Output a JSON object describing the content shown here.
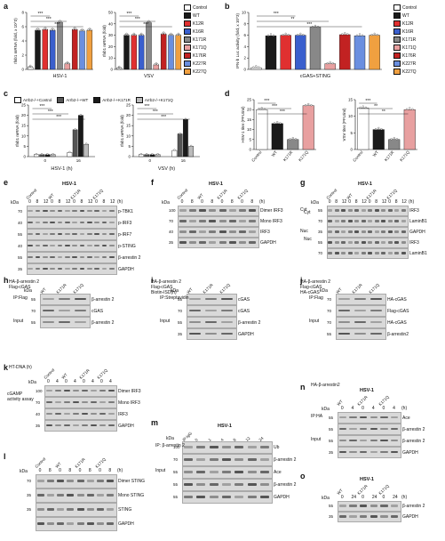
{
  "panel_letters": [
    "a",
    "b",
    "c",
    "d",
    "e",
    "f",
    "g",
    "h",
    "i",
    "j",
    "k",
    "l",
    "m",
    "n",
    "o"
  ],
  "legend_ab": [
    "Control",
    "WT",
    "K12R",
    "K16R",
    "K171R",
    "K171Q",
    "K176R",
    "K227R",
    "K227Q"
  ],
  "legend_c": [
    "Arrb2-/-+Control",
    "Arrb2-/-+WT",
    "Arrb2-/-+K171R",
    "Arrb2-/-+K171Q"
  ],
  "colors": {
    "Control": "#ffffff",
    "WT": "#1a1a1a",
    "K12R": "#e03030",
    "K16R": "#3a5fcd",
    "K171R": "#888888",
    "K171Q": "#e8a0a0",
    "K176R": "#c22222",
    "K227R": "#6a8fe0",
    "K227Q": "#f0a040"
  },
  "chart_data": [
    {
      "panel": "a",
      "type": "bar",
      "title": "HSV-1",
      "ylabel": "Ifnb1 mRNA (fold, x 10^3)",
      "ylim": [
        0,
        8
      ],
      "yticks": [
        "0",
        "2",
        "4",
        "6",
        "8"
      ],
      "categories": [
        "Control",
        "WT",
        "K12R",
        "K16R",
        "K171R",
        "K171Q",
        "K176R",
        "K227R",
        "K227Q"
      ],
      "values": [
        0.3,
        5.5,
        5.6,
        5.5,
        6.6,
        0.8,
        5.6,
        5.4,
        5.5
      ],
      "sig": [
        "***",
        "***",
        "***"
      ]
    },
    {
      "panel": "a",
      "type": "bar",
      "title": "VSV",
      "ylabel": "Ifnb1 mRNA (fold)",
      "ylim": [
        0,
        50
      ],
      "yticks": [
        "0",
        "10",
        "20",
        "30",
        "40",
        "50"
      ],
      "categories": [
        "Control",
        "WT",
        "K12R",
        "K16R",
        "K171R",
        "K171Q",
        "K176R",
        "K227R",
        "K227Q"
      ],
      "values": [
        1,
        30,
        30,
        30,
        41,
        4,
        31,
        30,
        30
      ],
      "sig": [
        "***",
        "***",
        "***"
      ]
    },
    {
      "panel": "b",
      "type": "bar",
      "title": "cGAS+STING",
      "ylabel": "IFN-b Luc activity (fold, x 10^3)",
      "ylim": [
        0,
        10
      ],
      "yticks": [
        "0",
        "2",
        "4",
        "6",
        "8",
        "10"
      ],
      "categories": [
        "Control",
        "WT",
        "K12R",
        "K16R",
        "K171R",
        "K171Q",
        "K176R",
        "K227R",
        "K227Q"
      ],
      "values": [
        0.3,
        5.9,
        6.0,
        6.0,
        7.4,
        1.0,
        6.1,
        5.9,
        6.0
      ],
      "sig": [
        "***",
        "**",
        "***"
      ]
    },
    {
      "panel": "c",
      "type": "bar",
      "title": "HSV-1 (h)",
      "ylabel": "Ifnb1 mRNA (fold)",
      "ylim": [
        0,
        25
      ],
      "yticks": [
        "0",
        "5",
        "10",
        "15",
        "20",
        "25"
      ],
      "categories": [
        "0",
        "16"
      ],
      "series": [
        {
          "name": "Arrb2-/-+Control",
          "values": [
            1,
            2
          ]
        },
        {
          "name": "Arrb2-/-+WT",
          "values": [
            1,
            13
          ]
        },
        {
          "name": "Arrb2-/-+K171R",
          "values": [
            1,
            20
          ]
        },
        {
          "name": "Arrb2-/-+K171Q",
          "values": [
            1,
            6
          ]
        }
      ],
      "sig": [
        "***",
        "***",
        "***"
      ]
    },
    {
      "panel": "c",
      "type": "bar",
      "title": "VSV (h)",
      "ylabel": "Ifnb1 mRNA (fold)",
      "ylim": [
        0,
        25
      ],
      "yticks": [
        "0",
        "5",
        "10",
        "15",
        "20",
        "25"
      ],
      "categories": [
        "0",
        "16"
      ],
      "series": [
        {
          "name": "Arrb2-/-+Control",
          "values": [
            1,
            3
          ]
        },
        {
          "name": "Arrb2-/-+WT",
          "values": [
            1,
            11
          ]
        },
        {
          "name": "Arrb2-/-+K171R",
          "values": [
            1,
            18
          ]
        },
        {
          "name": "Arrb2-/-+K171Q",
          "values": [
            1,
            5
          ]
        }
      ],
      "sig": [
        "***",
        "***",
        "***"
      ]
    },
    {
      "panel": "d",
      "type": "bar",
      "ylabel": "HSV-1 titer (PFU/ml)",
      "ylim": [
        0,
        25
      ],
      "yticks": [
        "0",
        "5",
        "10",
        "15",
        "20",
        "25"
      ],
      "categories": [
        "Control",
        "WT",
        "K171R",
        "K171Q"
      ],
      "values": [
        20,
        13,
        5,
        22
      ],
      "sig": [
        "***",
        "***",
        "***"
      ]
    },
    {
      "panel": "d",
      "type": "bar",
      "ylabel": "VSV titer (PFU/ml)",
      "ylim": [
        0,
        15
      ],
      "yticks": [
        "0",
        "5",
        "10",
        "15"
      ],
      "categories": [
        "Control",
        "WT",
        "K171R",
        "K171Q"
      ],
      "values": [
        12.5,
        6,
        3,
        12
      ],
      "sig": [
        "***",
        "**",
        "**"
      ]
    }
  ],
  "blots": {
    "e": {
      "title": "HSV-1",
      "groups": [
        "Control",
        "WT",
        "K171R",
        "K171Q"
      ],
      "times": [
        "0",
        "8",
        "12",
        "0",
        "8",
        "12",
        "0",
        "8",
        "12",
        "0",
        "8",
        "12"
      ],
      "unit": "(h)",
      "kda": "kDa",
      "mw": [
        "70",
        "40",
        "55",
        "40",
        "55",
        "35"
      ],
      "rows": [
        "p-TBK1",
        "p-IRF3",
        "p-IRF7",
        "p-STING",
        "β-arrestin 2",
        "GAPDH"
      ]
    },
    "f": {
      "title": "HSV-1",
      "groups": [
        "Control",
        "WT",
        "K171R",
        "K171Q"
      ],
      "times": [
        "0",
        "8",
        "0",
        "8",
        "0",
        "8",
        "0",
        "8"
      ],
      "unit": "(h)",
      "kda": "kDa",
      "mw": [
        "100",
        "70",
        "40",
        "35"
      ],
      "rows": [
        "Dimer IRF3",
        "Mono IRF3",
        "IRF3",
        "GAPDH"
      ]
    },
    "g": {
      "title": "HSV-1",
      "groups": [
        "Control",
        "WT",
        "K171R",
        "K171Q"
      ],
      "times": [
        "0",
        "8",
        "12",
        "0",
        "8",
        "12",
        "0",
        "8",
        "12",
        "0",
        "8",
        "12"
      ],
      "unit": "(h)",
      "kda": "kDa",
      "side": [
        "Cyt",
        "Nuc"
      ],
      "mw": [
        "55",
        "70",
        "35",
        "55",
        "70"
      ],
      "rows": [
        "IRF3",
        "LaminB1",
        "GAPDH",
        "IRF3",
        "LaminB1"
      ]
    },
    "h": {
      "top": [
        "HA-β-arrestin 2",
        "Flag-cGAS"
      ],
      "cols": [
        "WT",
        "K171R",
        "K171Q"
      ],
      "signs": [
        "-",
        "+",
        "+",
        "+"
      ],
      "kda": "kDa",
      "mw": [
        "55",
        "70",
        "55"
      ],
      "rows": [
        "β-arrestin 2",
        "cGAS",
        "β-arrestin 2"
      ],
      "side": [
        "IP:Flag",
        "Input"
      ]
    },
    "i": {
      "top": [
        "HA-β-arrestin 2",
        "Flag-cGAS",
        "Biotin-ISD(h)"
      ],
      "cols": [
        "WT",
        "K171R",
        "K171Q"
      ],
      "kda": "kDa",
      "mw": [
        "55",
        "70",
        "55",
        "35"
      ],
      "rows": [
        "cGAS",
        "cGAS",
        "β-arrestin 2",
        "GAPDH"
      ],
      "side": [
        "IP:Streptavidin",
        "Input"
      ]
    },
    "j": {
      "top": [
        "HA-β-arrestin 2",
        "Flag-cGAS",
        "HA-cGAS"
      ],
      "cols": [
        "WT",
        "K171R",
        "K171Q"
      ],
      "kda": "kDa",
      "mw": [
        "70",
        "70",
        "70",
        "55"
      ],
      "rows": [
        "HA-cGAS",
        "Flag-cGAS",
        "HA-cGAS",
        "β-arrestin2"
      ],
      "side": [
        "IP:Flag",
        "Input"
      ]
    },
    "k": {
      "top": "HT-DNA (h)",
      "groups": [
        "Control",
        "WT",
        "K171R",
        "K171Q"
      ],
      "times": [
        "0",
        "4",
        "0",
        "4",
        "0",
        "4",
        "0",
        "4"
      ],
      "kda": "kDa",
      "assay": "cGAMP activity assay",
      "mw": [
        "100",
        "70",
        "40",
        "35"
      ],
      "rows": [
        "Dimer IRF3",
        "Mono IRF3",
        "IRF3",
        "GAPDH"
      ]
    },
    "l": {
      "groups": [
        "Control",
        "WT",
        "K171R",
        "K171Q"
      ],
      "times": [
        "0",
        "8",
        "0",
        "8",
        "0",
        "8",
        "0",
        "8"
      ],
      "unit": "(h)",
      "kda": "kDa",
      "mw": [
        "70",
        "35",
        "35"
      ],
      "rows": [
        "Dimer STING",
        "Mono STING",
        "STING",
        "GAPDH"
      ]
    },
    "m": {
      "title": "HSV-1",
      "cols": [
        "IP:IgG",
        "0",
        "1",
        "4",
        "8",
        "12",
        "24"
      ],
      "unit": "(h)",
      "kda": "kDa",
      "side": [
        "IP: β-arrestin 2",
        "Input"
      ],
      "mw": [
        "100",
        "70",
        "55",
        "55",
        "55",
        "55",
        "35"
      ],
      "rows": [
        "Ub",
        "β-arrestin 2",
        "Ace",
        "β-arrestin 2",
        "GAPDH"
      ]
    },
    "n": {
      "title": "HSV-1",
      "top": "HA-β-arrestin2",
      "groups": [
        "WT",
        "K171R",
        "K171Q"
      ],
      "times": [
        "0",
        "4",
        "0",
        "4",
        "0",
        "4"
      ],
      "unit": "(h)",
      "kda": "kDa",
      "side": [
        "IP:HA",
        "Input"
      ],
      "mw": [
        "55",
        "55",
        "55",
        "35"
      ],
      "rows": [
        "Ace",
        "β-arrestin 2",
        "β-arrestin 2",
        "GAPDH"
      ]
    },
    "o": {
      "title": "HSV-1",
      "groups": [
        "WT",
        "K171R",
        "K171Q"
      ],
      "times": [
        "0",
        "24",
        "0",
        "24",
        "0",
        "24"
      ],
      "unit": "(h)",
      "kda": "kDa",
      "mw": [
        "55",
        "35"
      ],
      "rows": [
        "β-arrestin 2",
        "GAPDH"
      ]
    }
  }
}
